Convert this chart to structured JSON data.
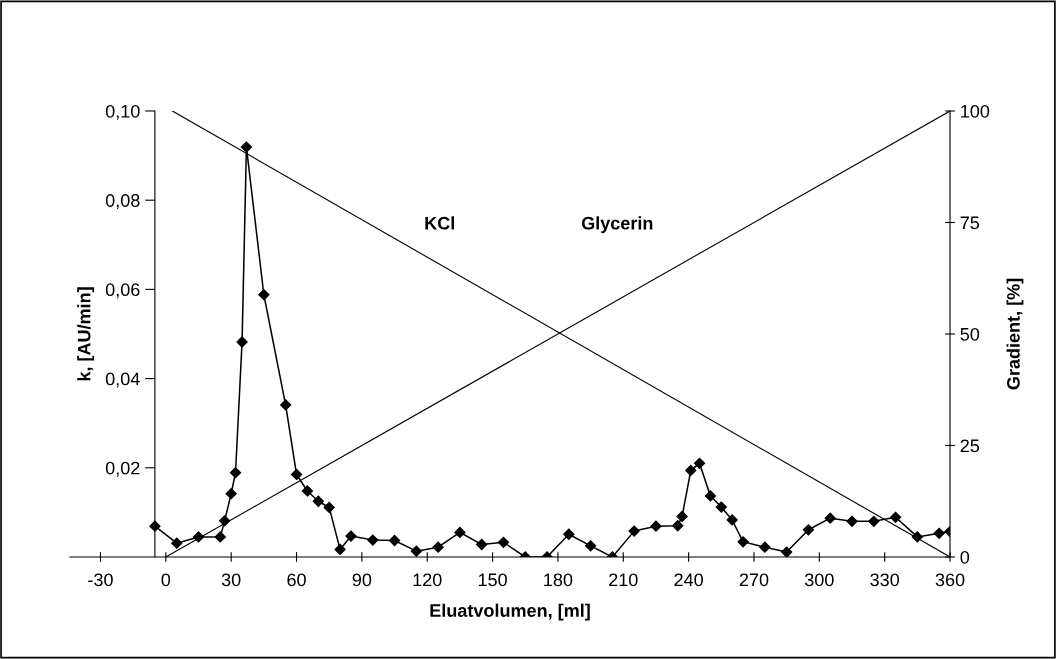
{
  "chart_data": {
    "type": "line",
    "xlabel": "Eluatvolumen, [ml]",
    "ylabel": "k, [AU/min]",
    "y2label": "Gradient, [%]",
    "xlim": [
      -44,
      360
    ],
    "xticks": [
      -30,
      0,
      30,
      60,
      90,
      120,
      150,
      180,
      210,
      240,
      270,
      300,
      330,
      360
    ],
    "ylim": [
      0,
      0.1
    ],
    "yticks": [
      {
        "value": 0.02,
        "label": "0,02"
      },
      {
        "value": 0.04,
        "label": "0,04"
      },
      {
        "value": 0.06,
        "label": "0,06"
      },
      {
        "value": 0.08,
        "label": "0,08"
      },
      {
        "value": 0.1,
        "label": "0,10"
      }
    ],
    "y2lim": [
      0,
      100
    ],
    "y2ticks": [
      0,
      25,
      50,
      75,
      100
    ],
    "grid": false,
    "legend": false,
    "series": [
      {
        "color": "#000000",
        "marker": "diamond",
        "x": [
          -5,
          5,
          15,
          25,
          27,
          30,
          32,
          35,
          37,
          45,
          55,
          60,
          65,
          70,
          75,
          80,
          85,
          95,
          105,
          115,
          125,
          135,
          145,
          155,
          165,
          175,
          185,
          195,
          205,
          215,
          225,
          235,
          237,
          241,
          245,
          250,
          255,
          260,
          265,
          275,
          285,
          295,
          305,
          315,
          325,
          335,
          345,
          355,
          360
        ],
        "values": [
          0.0069,
          0.0031,
          0.0045,
          0.0045,
          0.0081,
          0.0142,
          0.0189,
          0.0482,
          0.0919,
          0.0588,
          0.0341,
          0.0185,
          0.0148,
          0.0125,
          0.0111,
          0.0017,
          0.0047,
          0.0038,
          0.0037,
          0.0013,
          0.0022,
          0.0055,
          0.0028,
          0.0033,
          0,
          0,
          0.0051,
          0.0025,
          0,
          0.0058,
          0.0069,
          0.007,
          0.0091,
          0.0194,
          0.021,
          0.0137,
          0.0112,
          0.0083,
          0.0034,
          0.0022,
          0.0011,
          0.0061,
          0.0087,
          0.008,
          0.008,
          0.0089,
          0.0045,
          0.0053,
          0.0057
        ]
      },
      {
        "color": "#000000",
        "axis": "y2",
        "x": [
          3,
          360
        ],
        "values": [
          100,
          0
        ]
      },
      {
        "color": "#000000",
        "axis": "y2",
        "x": [
          0,
          360
        ],
        "values": [
          0,
          100
        ]
      }
    ],
    "annotations": [
      "KCl",
      "Glycerin"
    ]
  }
}
